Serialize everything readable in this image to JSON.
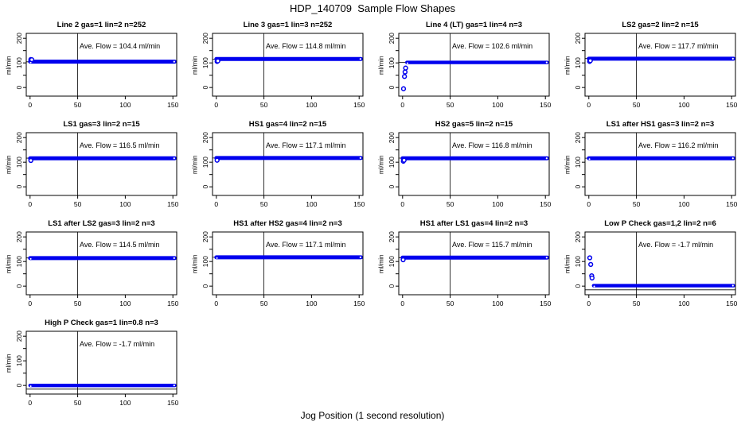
{
  "page": {
    "title": "HDP_140709  Sample Flow Shapes",
    "xlabel": "Jog Position (1 second resolution)"
  },
  "chart_data": {
    "type": "scatter",
    "layout": "4-column small-multiples grid, 13 panels",
    "title": "HDP_140709  Sample Flow Shapes",
    "xlabel": "Jog Position (1 second resolution)",
    "ylabel": "ml/min",
    "xlim": [
      -4,
      154
    ],
    "ylim": [
      -35,
      220
    ],
    "xticks": [
      0,
      50,
      100,
      150
    ],
    "ytick_marks": [
      0,
      50,
      100,
      150,
      200
    ],
    "ytick_labels": [
      0,
      100,
      200
    ],
    "vline_x": 50,
    "grid": "off",
    "point_color": "#0000EE",
    "axis_color": "#000000",
    "panels": [
      {
        "title": "Line 2 gas=1 lin=2 n=252",
        "ave_flow": 104.4,
        "ave_label": "Ave. Flow =  104.4  ml/min",
        "hline": 104.4,
        "band": {
          "x0": 0,
          "x1": 152,
          "y": 105,
          "half": 8
        },
        "start_points": [
          [
            0.8,
            114
          ],
          [
            1.8,
            113
          ]
        ]
      },
      {
        "title": "Line 3 gas=1 lin=3 n=252",
        "ave_flow": 114.8,
        "ave_label": "Ave. Flow =  114.8  ml/min",
        "hline": 114.8,
        "band": {
          "x0": 0,
          "x1": 152,
          "y": 116,
          "half": 8
        },
        "start_points": [
          [
            0.8,
            106
          ],
          [
            1.6,
            108
          ]
        ]
      },
      {
        "title": "Line 4 (LT) gas=1 lin=4 n=3",
        "ave_flow": 102.6,
        "ave_label": "Ave. Flow =  102.6  ml/min",
        "hline": 102.6,
        "band": {
          "x0": 4.5,
          "x1": 152,
          "y": 102,
          "half": 7
        },
        "start_points": [
          [
            1,
            -5
          ],
          [
            2,
            45
          ],
          [
            2.6,
            63
          ],
          [
            3.2,
            79
          ]
        ]
      },
      {
        "title": "LS2 gas=2 lin=2 n=15",
        "ave_flow": 117.7,
        "ave_label": "Ave. Flow =  117.7  ml/min",
        "hline": 117.7,
        "band": {
          "x0": 0,
          "x1": 152,
          "y": 117,
          "half": 8
        },
        "start_points": [
          [
            0.8,
            106
          ],
          [
            1.6,
            109
          ]
        ]
      },
      {
        "title": "LS1 gas=3 lin=2 n=15",
        "ave_flow": 116.5,
        "ave_label": "Ave. Flow =  116.5  ml/min",
        "hline": 116.5,
        "band": {
          "x0": 0,
          "x1": 152,
          "y": 116,
          "half": 8
        },
        "start_points": [
          [
            0.8,
            107
          ]
        ]
      },
      {
        "title": "HS1 gas=4 lin=2 n=15",
        "ave_flow": 117.1,
        "ave_label": "Ave. Flow =  117.1  ml/min",
        "hline": 117.1,
        "band": {
          "x0": 0,
          "x1": 152,
          "y": 117,
          "half": 8
        },
        "start_points": [
          [
            0.8,
            108
          ]
        ]
      },
      {
        "title": "HS2 gas=5 lin=2 n=15",
        "ave_flow": 116.8,
        "ave_label": "Ave. Flow =  116.8  ml/min",
        "hline": 116.8,
        "band": {
          "x0": 0,
          "x1": 152,
          "y": 116,
          "half": 8
        },
        "start_points": [
          [
            0.8,
            104
          ],
          [
            1.6,
            108
          ]
        ]
      },
      {
        "title": "LS1 after HS1 gas=3 lin=2 n=3",
        "ave_flow": 116.2,
        "ave_label": "Ave. Flow =  116.2  ml/min",
        "hline": 116.2,
        "band": {
          "x0": 0,
          "x1": 152,
          "y": 116,
          "half": 8
        },
        "start_points": []
      },
      {
        "title": "LS1 after LS2 gas=3 lin=2 n=3",
        "ave_flow": 114.5,
        "ave_label": "Ave. Flow =  114.5  ml/min",
        "hline": 114.5,
        "band": {
          "x0": 0,
          "x1": 152,
          "y": 114,
          "half": 8
        },
        "start_points": []
      },
      {
        "title": "HS1 after HS2 gas=4 lin=2 n=3",
        "ave_flow": 117.1,
        "ave_label": "Ave. Flow =  117.1  ml/min",
        "hline": 117.1,
        "band": {
          "x0": 0,
          "x1": 152,
          "y": 117,
          "half": 8
        },
        "start_points": []
      },
      {
        "title": "HS1 after LS1 gas=4 lin=2 n=3",
        "ave_flow": 115.7,
        "ave_label": "Ave. Flow =  115.7  ml/min",
        "hline": 115.7,
        "band": {
          "x0": 0,
          "x1": 152,
          "y": 116,
          "half": 8
        },
        "start_points": [
          [
            0.6,
            107
          ]
        ]
      },
      {
        "title": "Low P Check gas=1,2 lin=2 n=6",
        "ave_flow": -1.7,
        "ave_label": "Ave. Flow =  -1.7  ml/min",
        "hline": -15,
        "band": {
          "x0": 5,
          "x1": 152,
          "y": 2,
          "half": 7
        },
        "start_points": [
          [
            1,
            115
          ],
          [
            2,
            88
          ],
          [
            3,
            42
          ],
          [
            3.4,
            33
          ]
        ]
      },
      {
        "title": "High P Check gas=1 lin=0.8 n=3",
        "ave_flow": -1.7,
        "ave_label": "Ave. Flow =  -1.7  ml/min",
        "hline": -15,
        "band": {
          "x0": 0,
          "x1": 152,
          "y": 0,
          "half": 7
        },
        "start_points": []
      }
    ]
  }
}
